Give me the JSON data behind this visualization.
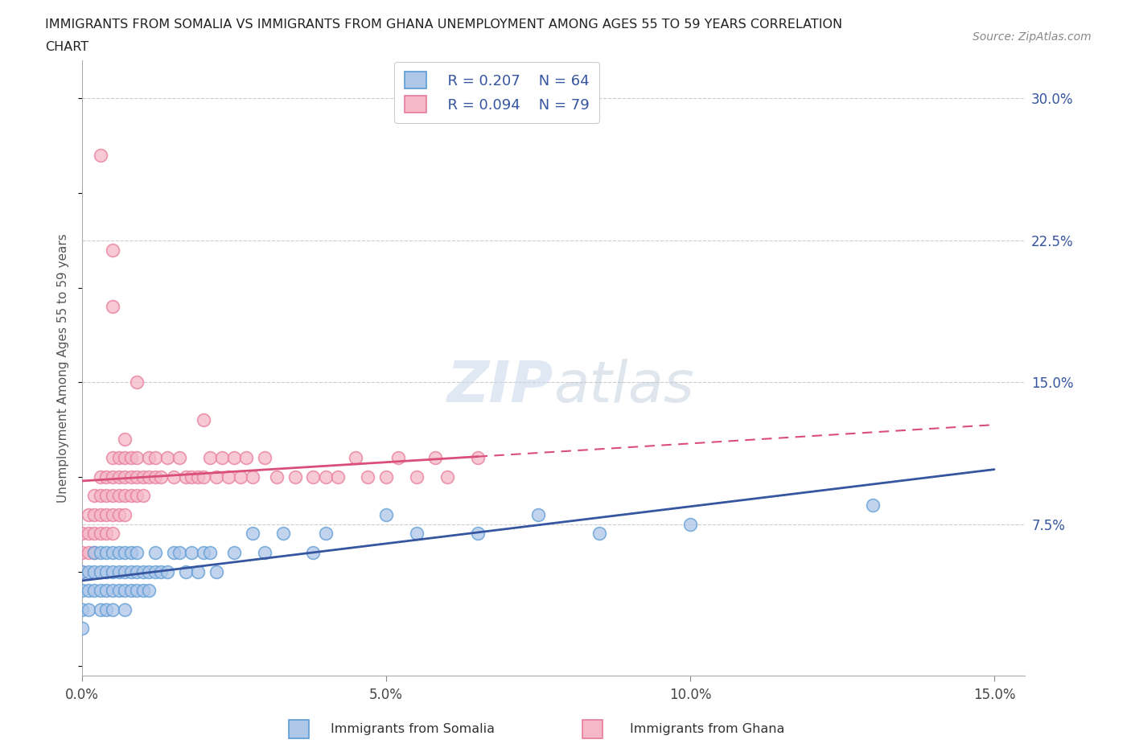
{
  "title_line1": "IMMIGRANTS FROM SOMALIA VS IMMIGRANTS FROM GHANA UNEMPLOYMENT AMONG AGES 55 TO 59 YEARS CORRELATION",
  "title_line2": "CHART",
  "source": "Source: ZipAtlas.com",
  "ylabel": "Unemployment Among Ages 55 to 59 years",
  "xlim": [
    0.0,
    0.155
  ],
  "ylim": [
    -0.005,
    0.32
  ],
  "xticks": [
    0.0,
    0.05,
    0.1,
    0.15
  ],
  "xticklabels": [
    "0.0%",
    "5.0%",
    "10.0%",
    "15.0%"
  ],
  "yticks": [
    0.075,
    0.15,
    0.225,
    0.3
  ],
  "yticklabels_right": [
    "7.5%",
    "15.0%",
    "22.5%",
    "30.0%"
  ],
  "somalia_color": "#aec6e8",
  "somalia_edge": "#5b9bd5",
  "ghana_color": "#f4b8c8",
  "ghana_edge": "#e87a99",
  "trend_somalia_color": "#3555a0",
  "trend_ghana_color": "#d94f7a",
  "legend_R_somalia": "R = 0.207",
  "legend_N_somalia": "N = 64",
  "legend_R_ghana": "R = 0.094",
  "legend_N_ghana": "N = 79",
  "watermark": "ZIPatlas",
  "somalia_x": [
    0.0,
    0.0,
    0.0,
    0.0,
    0.001,
    0.001,
    0.001,
    0.002,
    0.002,
    0.002,
    0.003,
    0.003,
    0.003,
    0.003,
    0.004,
    0.004,
    0.004,
    0.004,
    0.005,
    0.005,
    0.005,
    0.005,
    0.006,
    0.006,
    0.006,
    0.007,
    0.007,
    0.007,
    0.007,
    0.008,
    0.008,
    0.008,
    0.009,
    0.009,
    0.009,
    0.01,
    0.01,
    0.011,
    0.011,
    0.012,
    0.012,
    0.013,
    0.014,
    0.015,
    0.016,
    0.017,
    0.018,
    0.019,
    0.02,
    0.021,
    0.022,
    0.025,
    0.028,
    0.03,
    0.033,
    0.038,
    0.04,
    0.05,
    0.055,
    0.065,
    0.075,
    0.085,
    0.1,
    0.13
  ],
  "somalia_y": [
    0.02,
    0.03,
    0.04,
    0.05,
    0.03,
    0.04,
    0.05,
    0.04,
    0.05,
    0.06,
    0.03,
    0.04,
    0.05,
    0.06,
    0.03,
    0.04,
    0.05,
    0.06,
    0.03,
    0.04,
    0.05,
    0.06,
    0.04,
    0.05,
    0.06,
    0.03,
    0.04,
    0.05,
    0.06,
    0.04,
    0.05,
    0.06,
    0.04,
    0.05,
    0.06,
    0.04,
    0.05,
    0.04,
    0.05,
    0.05,
    0.06,
    0.05,
    0.05,
    0.06,
    0.06,
    0.05,
    0.06,
    0.05,
    0.06,
    0.06,
    0.05,
    0.06,
    0.07,
    0.06,
    0.07,
    0.06,
    0.07,
    0.08,
    0.07,
    0.07,
    0.08,
    0.07,
    0.075,
    0.085
  ],
  "ghana_x": [
    0.0,
    0.0,
    0.0,
    0.001,
    0.001,
    0.001,
    0.002,
    0.002,
    0.002,
    0.002,
    0.003,
    0.003,
    0.003,
    0.003,
    0.004,
    0.004,
    0.004,
    0.004,
    0.005,
    0.005,
    0.005,
    0.005,
    0.005,
    0.006,
    0.006,
    0.006,
    0.006,
    0.007,
    0.007,
    0.007,
    0.007,
    0.007,
    0.008,
    0.008,
    0.008,
    0.009,
    0.009,
    0.009,
    0.01,
    0.01,
    0.011,
    0.011,
    0.012,
    0.012,
    0.013,
    0.014,
    0.015,
    0.016,
    0.017,
    0.018,
    0.019,
    0.02,
    0.021,
    0.022,
    0.023,
    0.024,
    0.025,
    0.026,
    0.027,
    0.028,
    0.03,
    0.032,
    0.035,
    0.038,
    0.04,
    0.042,
    0.045,
    0.047,
    0.05,
    0.052,
    0.055,
    0.058,
    0.06,
    0.065,
    0.005,
    0.005,
    0.003,
    0.009,
    0.02
  ],
  "ghana_y": [
    0.05,
    0.06,
    0.07,
    0.06,
    0.07,
    0.08,
    0.06,
    0.07,
    0.08,
    0.09,
    0.07,
    0.08,
    0.09,
    0.1,
    0.07,
    0.08,
    0.09,
    0.1,
    0.07,
    0.08,
    0.09,
    0.1,
    0.11,
    0.08,
    0.09,
    0.1,
    0.11,
    0.08,
    0.09,
    0.1,
    0.11,
    0.12,
    0.09,
    0.1,
    0.11,
    0.09,
    0.1,
    0.11,
    0.09,
    0.1,
    0.1,
    0.11,
    0.1,
    0.11,
    0.1,
    0.11,
    0.1,
    0.11,
    0.1,
    0.1,
    0.1,
    0.1,
    0.11,
    0.1,
    0.11,
    0.1,
    0.11,
    0.1,
    0.11,
    0.1,
    0.11,
    0.1,
    0.1,
    0.1,
    0.1,
    0.1,
    0.11,
    0.1,
    0.1,
    0.11,
    0.1,
    0.11,
    0.1,
    0.11,
    0.19,
    0.22,
    0.27,
    0.15,
    0.13
  ]
}
